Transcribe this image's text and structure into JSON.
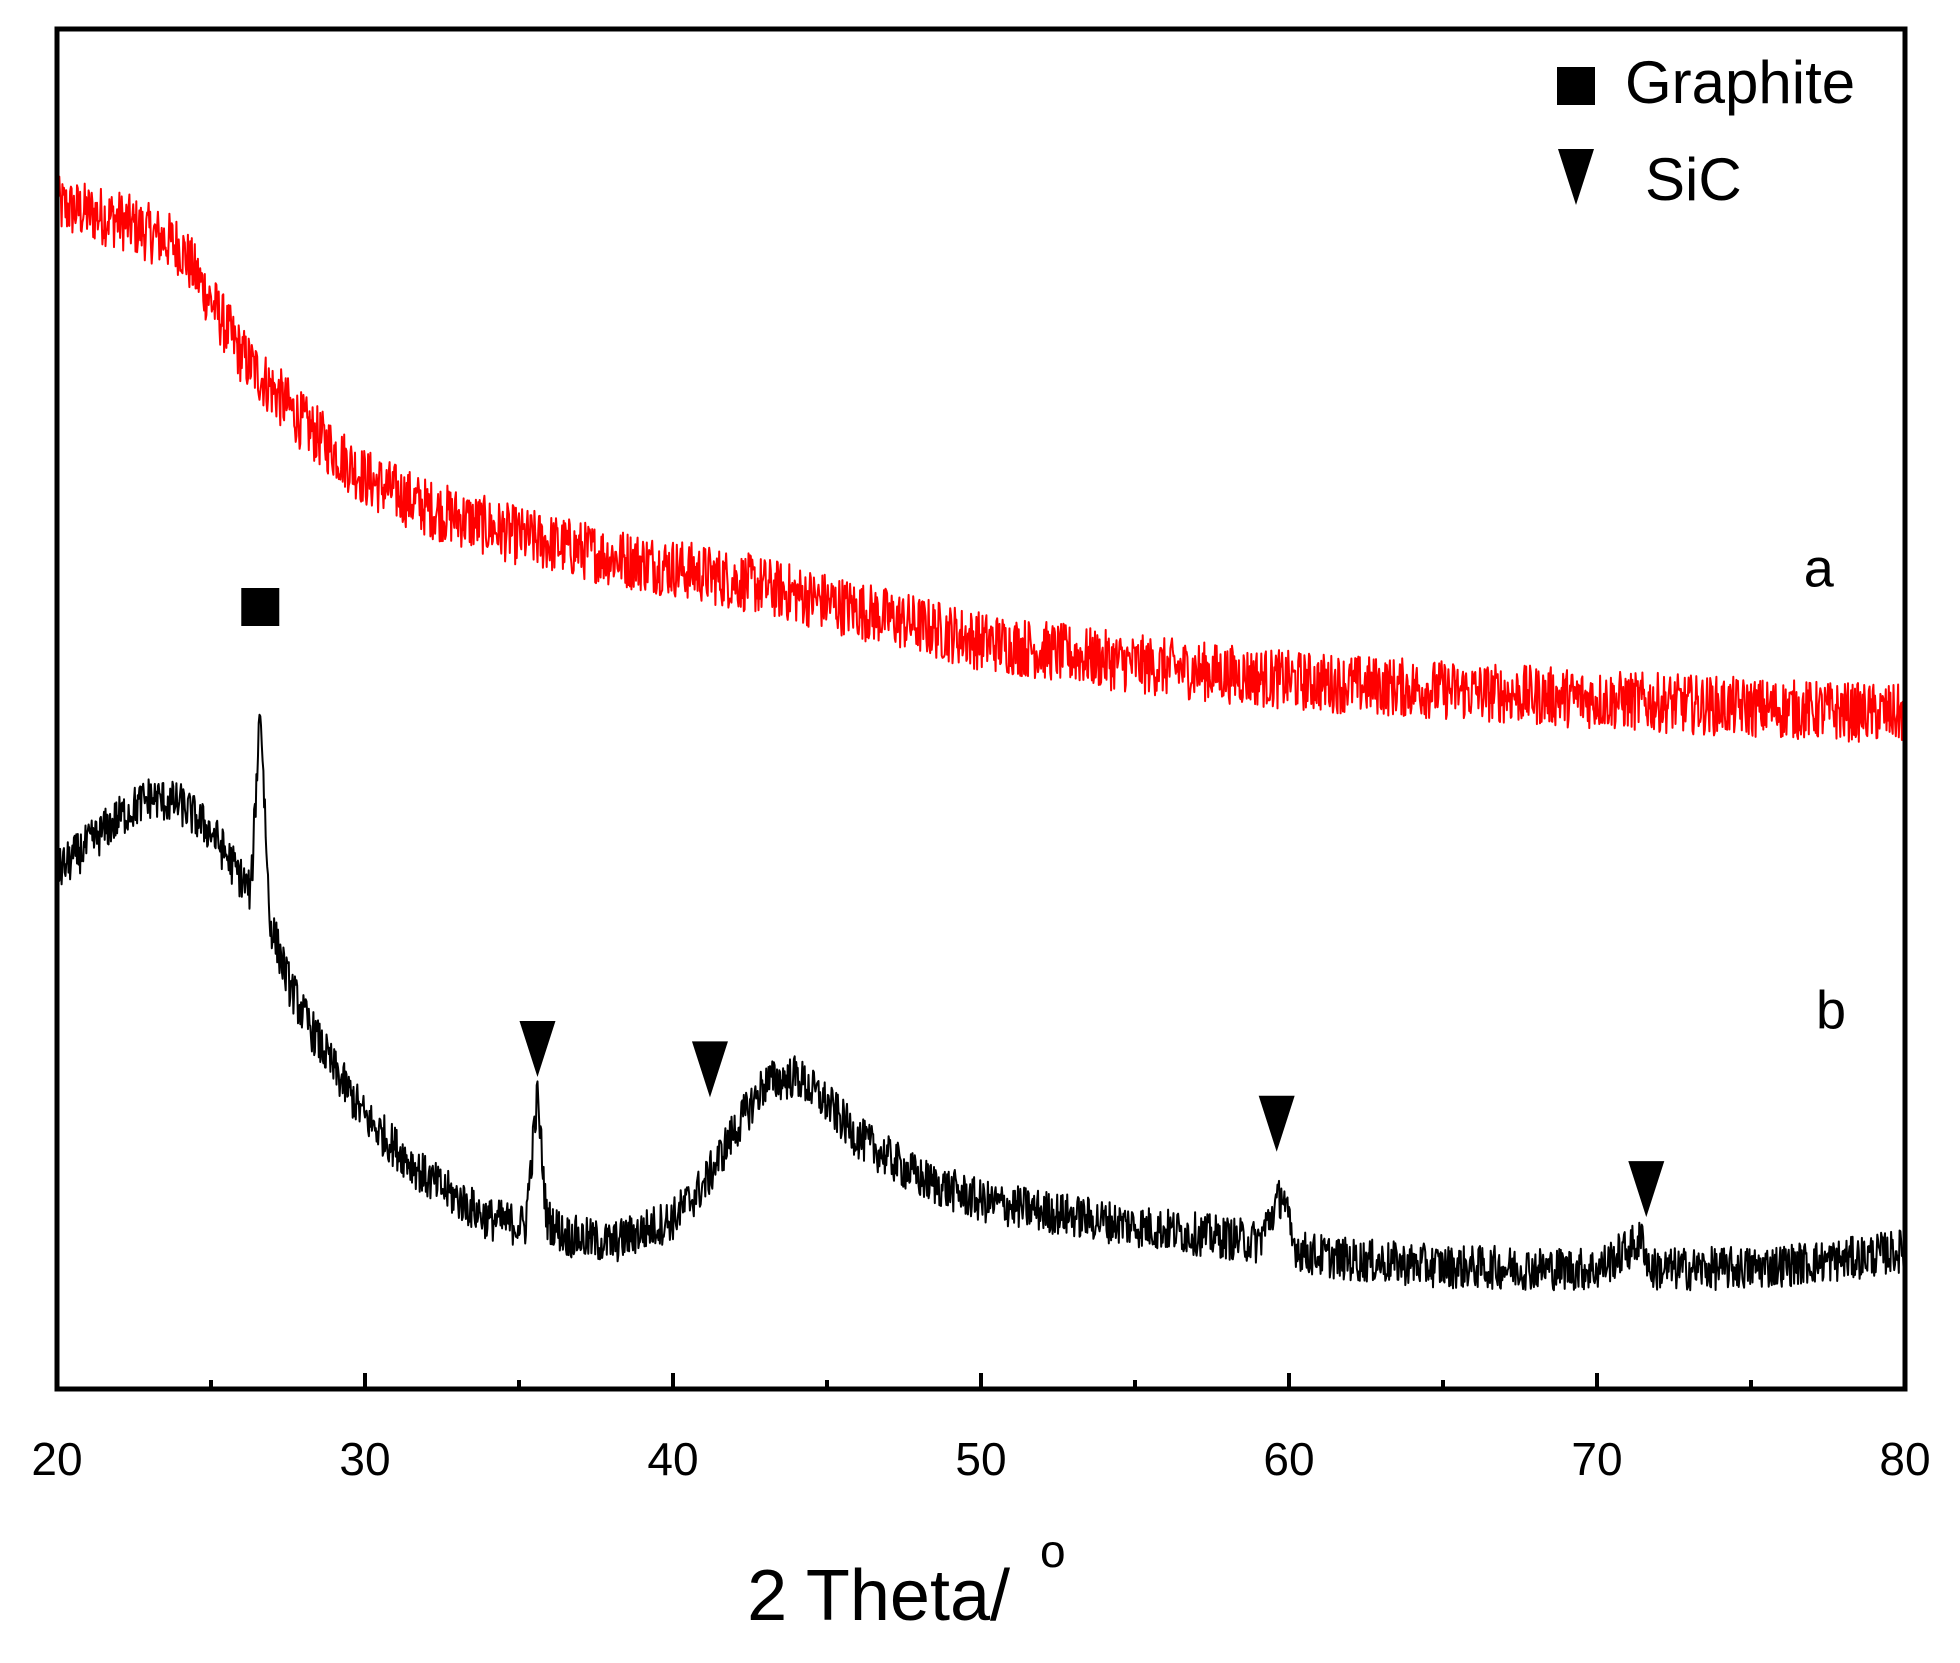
{
  "chart_data": {
    "type": "line",
    "title": "",
    "xlabel": "2 Theta/ ",
    "xlabel_superscript": "o",
    "ylabel": "",
    "xlim": [
      20,
      80
    ],
    "ylim": [
      0,
      100
    ],
    "x_ticks": [
      "20",
      "30",
      "40",
      "50",
      "60",
      "70",
      "80"
    ],
    "x_tick_values": [
      20,
      30,
      40,
      50,
      60,
      70,
      80
    ],
    "x_minor_tick_values": [
      25,
      35,
      45,
      55,
      65,
      75
    ],
    "grid": false,
    "legend_position": "top-right",
    "legend": [
      {
        "marker": "square",
        "label": "Graphite"
      },
      {
        "marker": "triangle-down",
        "label": "SiC"
      }
    ],
    "series": [
      {
        "name": "a",
        "color": "#ff0000",
        "noise": 2.2,
        "x": [
          20,
          22,
          24,
          25,
          26,
          27,
          28,
          30,
          32,
          35,
          38,
          40,
          43,
          46,
          50,
          55,
          60,
          65,
          70,
          75,
          80
        ],
        "y": [
          87.0,
          86.0,
          84.0,
          80.0,
          76.0,
          73.5,
          71.0,
          67.0,
          64.8,
          62.7,
          61.2,
          60.4,
          59.0,
          57.3,
          55.0,
          53.3,
          52.1,
          51.4,
          50.7,
          50.1,
          49.6
        ]
      },
      {
        "name": "b",
        "color": "#000000",
        "noise": 1.6,
        "x": [
          20,
          21,
          22,
          23,
          24,
          25,
          26,
          26.3,
          26.6,
          26.9,
          27.5,
          28,
          29,
          30,
          32,
          34,
          35.2,
          35.6,
          35.9,
          36.5,
          38,
          40,
          41,
          42,
          43,
          44,
          45,
          46,
          48,
          50,
          55,
          59,
          59.8,
          60.1,
          60.5,
          62,
          65,
          70,
          71.5,
          71.7,
          72,
          75,
          78,
          80
        ],
        "y": [
          38.0,
          40.0,
          42.0,
          43.5,
          43.0,
          41.0,
          37.5,
          36.5,
          50.5,
          34.5,
          30.0,
          27.5,
          23.5,
          20.0,
          15.5,
          12.5,
          12.0,
          21.5,
          12.5,
          11.3,
          10.7,
          12.5,
          15.0,
          19.0,
          22.5,
          23.0,
          21.0,
          18.5,
          15.5,
          13.8,
          12.0,
          10.8,
          14.5,
          10.8,
          10.0,
          9.5,
          9.0,
          8.8,
          11.0,
          8.8,
          8.8,
          8.9,
          9.5,
          10.2
        ]
      }
    ],
    "annotations": [
      {
        "text": "a",
        "x": 77.2,
        "y": 59.0
      },
      {
        "text": "b",
        "x": 77.6,
        "y": 26.5
      },
      {
        "marker": "square",
        "x": 26.6,
        "y": 57.5
      },
      {
        "marker": "triangle-down",
        "x": 35.6,
        "y": 25.0
      },
      {
        "marker": "triangle-down",
        "x": 41.2,
        "y": 23.5
      },
      {
        "marker": "triangle-down",
        "x": 59.6,
        "y": 19.5
      },
      {
        "marker": "triangle-down",
        "x": 71.6,
        "y": 14.7
      }
    ]
  }
}
